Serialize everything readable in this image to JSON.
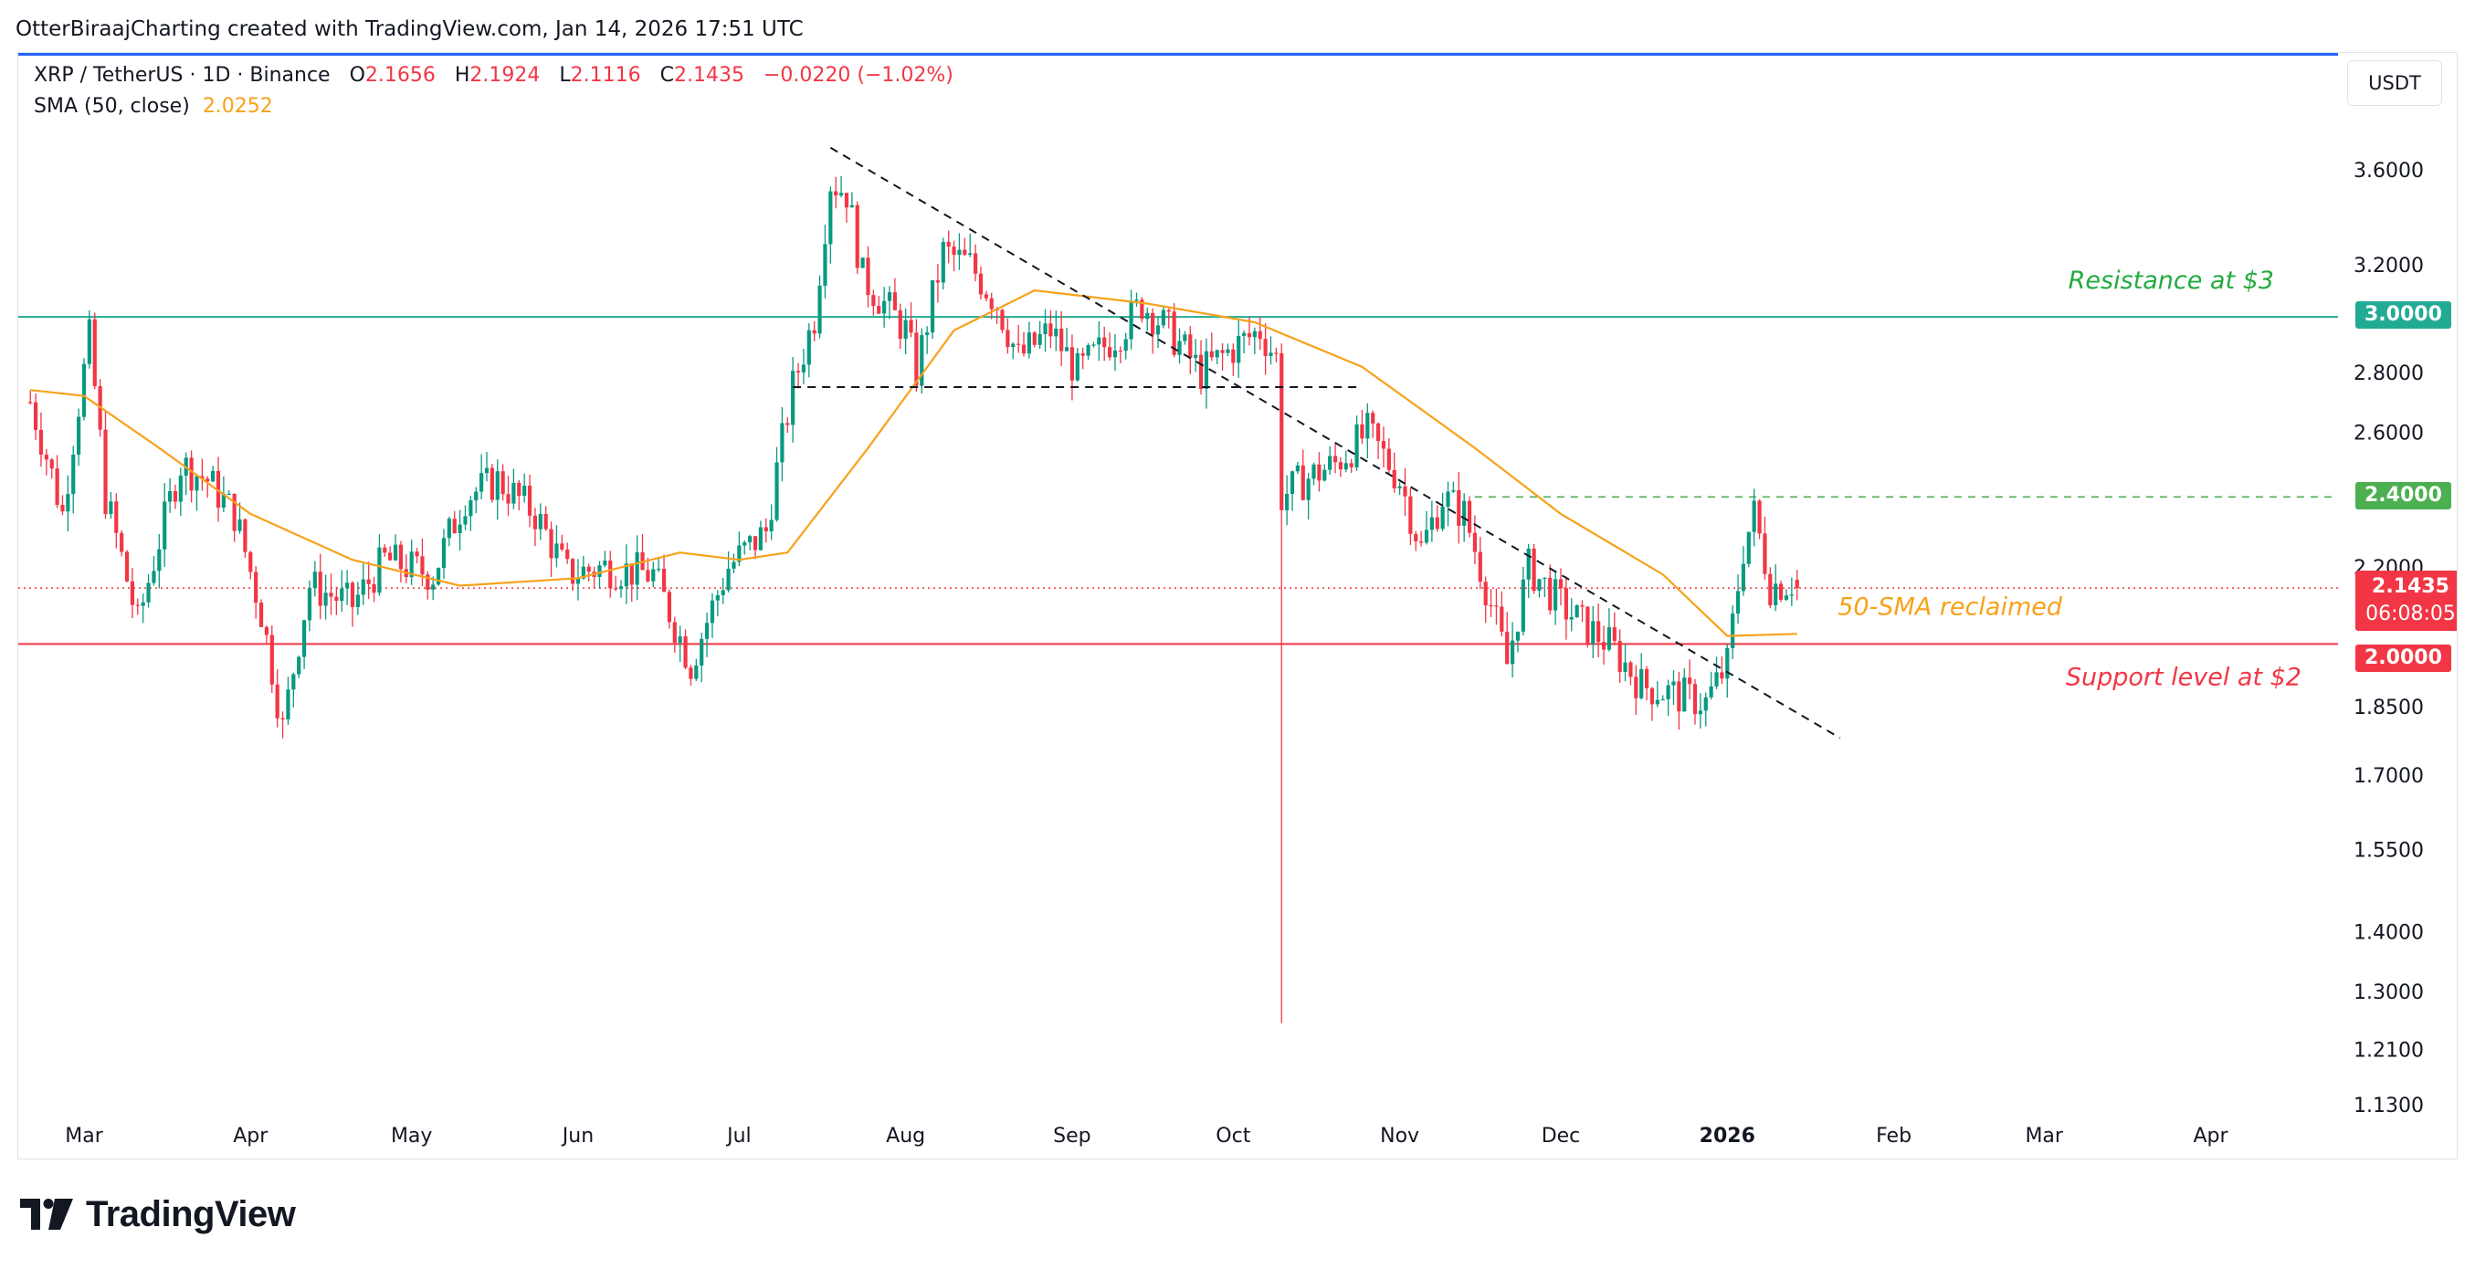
{
  "header": {
    "attribution": "OtterBiraajCharting created with TradingView.com, Jan 14, 2026 17:51 UTC"
  },
  "legend": {
    "symbol": "XRP / TetherUS · 1D · Binance",
    "open_label": "O",
    "open": "2.1656",
    "high_label": "H",
    "high": "2.1924",
    "low_label": "L",
    "low": "2.1116",
    "close_label": "C",
    "close": "2.1435",
    "change": "−0.0220 (−1.02%)",
    "sma_label": "SMA (50, close)",
    "sma_value": "2.0252"
  },
  "currency": "USDT",
  "price_tags": {
    "resistance": "3.0000",
    "level_240": "2.4000",
    "current": "2.1435",
    "countdown": "06:08:05",
    "support": "2.0000"
  },
  "annotations": {
    "resistance": "Resistance at $3",
    "sma": "50-SMA reclaimed",
    "support": "Support level at $2"
  },
  "colors": {
    "up": "#089981",
    "down": "#f23645",
    "sma": "#f7a21b",
    "resistance_line": "#22ab94",
    "support_line": "#f23645",
    "dashed_level": "#4caf50",
    "accent": "#2962ff"
  },
  "footer": {
    "brand": "TradingView",
    "icon": "tradingview-logo-icon"
  },
  "chart_data": {
    "type": "candlestick",
    "scale": "log",
    "ylim": [
      1.13,
      3.75
    ],
    "y_ticks": [
      "3.6000",
      "3.2000",
      "2.8000",
      "2.6000",
      "2.2000",
      "1.8500",
      "1.7000",
      "1.5500",
      "1.4000",
      "1.3000",
      "1.2100",
      "1.1300"
    ],
    "x_ticks": [
      "Mar",
      "Apr",
      "May",
      "Jun",
      "Jul",
      "Aug",
      "Sep",
      "Oct",
      "Nov",
      "Dec",
      "2026",
      "Feb",
      "Mar",
      "Apr"
    ],
    "x_tick_dates": [
      "2025-03-01",
      "2025-04-01",
      "2025-05-01",
      "2025-06-01",
      "2025-07-01",
      "2025-08-01",
      "2025-09-01",
      "2025-10-01",
      "2025-11-01",
      "2025-12-01",
      "2026-01-01",
      "2026-02-01",
      "2026-03-01",
      "2026-04-01"
    ],
    "x_range": [
      "2025-02-19",
      "2026-04-17"
    ],
    "series": [
      {
        "name": "XRP / TetherUS",
        "kind": "close",
        "points": [
          [
            "2025-02-19",
            2.7
          ],
          [
            "2025-02-25",
            2.35
          ],
          [
            "2025-03-02",
            2.92
          ],
          [
            "2025-03-05",
            2.4
          ],
          [
            "2025-03-11",
            2.05
          ],
          [
            "2025-03-19",
            2.5
          ],
          [
            "2025-03-24",
            2.45
          ],
          [
            "2025-03-29",
            2.35
          ],
          [
            "2025-04-03",
            2.08
          ],
          [
            "2025-04-07",
            1.8
          ],
          [
            "2025-04-12",
            2.15
          ],
          [
            "2025-04-20",
            2.1
          ],
          [
            "2025-04-26",
            2.22
          ],
          [
            "2025-05-05",
            2.18
          ],
          [
            "2025-05-11",
            2.4
          ],
          [
            "2025-05-17",
            2.45
          ],
          [
            "2025-05-24",
            2.35
          ],
          [
            "2025-05-30",
            2.18
          ],
          [
            "2025-06-06",
            2.2
          ],
          [
            "2025-06-15",
            2.18
          ],
          [
            "2025-06-22",
            1.95
          ],
          [
            "2025-06-29",
            2.2
          ],
          [
            "2025-07-06",
            2.3
          ],
          [
            "2025-07-11",
            2.75
          ],
          [
            "2025-07-15",
            3.0
          ],
          [
            "2025-07-18",
            3.55
          ],
          [
            "2025-07-21",
            3.5
          ],
          [
            "2025-07-24",
            3.15
          ],
          [
            "2025-08-01",
            2.95
          ],
          [
            "2025-08-03",
            2.8
          ],
          [
            "2025-08-08",
            3.25
          ],
          [
            "2025-08-13",
            3.2
          ],
          [
            "2025-08-18",
            3.05
          ],
          [
            "2025-08-22",
            2.85
          ],
          [
            "2025-08-28",
            2.95
          ],
          [
            "2025-09-02",
            2.8
          ],
          [
            "2025-09-10",
            2.95
          ],
          [
            "2025-09-14",
            3.05
          ],
          [
            "2025-09-19",
            2.95
          ],
          [
            "2025-09-25",
            2.8
          ],
          [
            "2025-10-02",
            2.9
          ],
          [
            "2025-10-06",
            2.95
          ],
          [
            "2025-10-09",
            2.85
          ],
          [
            "2025-10-10",
            2.4
          ],
          [
            "2025-10-14",
            2.45
          ],
          [
            "2025-10-20",
            2.5
          ],
          [
            "2025-10-26",
            2.6
          ],
          [
            "2025-11-01",
            2.45
          ],
          [
            "2025-11-05",
            2.25
          ],
          [
            "2025-11-09",
            2.4
          ],
          [
            "2025-11-13",
            2.35
          ],
          [
            "2025-11-17",
            2.15
          ],
          [
            "2025-11-21",
            1.95
          ],
          [
            "2025-11-25",
            2.2
          ],
          [
            "2025-12-01",
            2.1
          ],
          [
            "2025-12-05",
            2.05
          ],
          [
            "2025-12-10",
            2.0
          ],
          [
            "2025-12-16",
            1.9
          ],
          [
            "2025-12-22",
            1.88
          ],
          [
            "2025-12-28",
            1.86
          ],
          [
            "2026-01-01",
            1.95
          ],
          [
            "2026-01-04",
            2.25
          ],
          [
            "2026-01-06",
            2.35
          ],
          [
            "2026-01-09",
            2.15
          ],
          [
            "2026-01-13",
            2.16
          ],
          [
            "2026-01-14",
            2.1435
          ]
        ]
      },
      {
        "name": "SMA (50, close)",
        "kind": "line",
        "points": [
          [
            "2025-02-19",
            2.74
          ],
          [
            "2025-03-01",
            2.72
          ],
          [
            "2025-03-15",
            2.55
          ],
          [
            "2025-04-01",
            2.35
          ],
          [
            "2025-04-20",
            2.22
          ],
          [
            "2025-05-10",
            2.15
          ],
          [
            "2025-06-01",
            2.17
          ],
          [
            "2025-06-20",
            2.24
          ],
          [
            "2025-07-01",
            2.22
          ],
          [
            "2025-07-10",
            2.24
          ],
          [
            "2025-07-25",
            2.55
          ],
          [
            "2025-08-10",
            2.95
          ],
          [
            "2025-08-25",
            3.1
          ],
          [
            "2025-09-15",
            3.05
          ],
          [
            "2025-10-05",
            2.98
          ],
          [
            "2025-10-25",
            2.82
          ],
          [
            "2025-11-15",
            2.55
          ],
          [
            "2025-12-01",
            2.35
          ],
          [
            "2025-12-20",
            2.18
          ],
          [
            "2026-01-01",
            2.02
          ],
          [
            "2026-01-14",
            2.0252
          ]
        ]
      }
    ],
    "levels": [
      {
        "name": "Resistance at $3",
        "value": 3.0
      },
      {
        "name": "2.4000",
        "value": 2.4
      },
      {
        "name": "Support level at $2",
        "value": 2.0
      }
    ],
    "wick_low": {
      "date": "2025-10-10",
      "value": 1.25
    },
    "trendlines": [
      {
        "name": "descending",
        "points": [
          [
            "2025-07-18",
            3.7
          ],
          [
            "2026-01-22",
            1.78
          ]
        ]
      },
      {
        "name": "triangle-base",
        "points": [
          [
            "2025-07-11",
            2.75
          ],
          [
            "2025-10-25",
            2.75
          ]
        ]
      }
    ]
  }
}
